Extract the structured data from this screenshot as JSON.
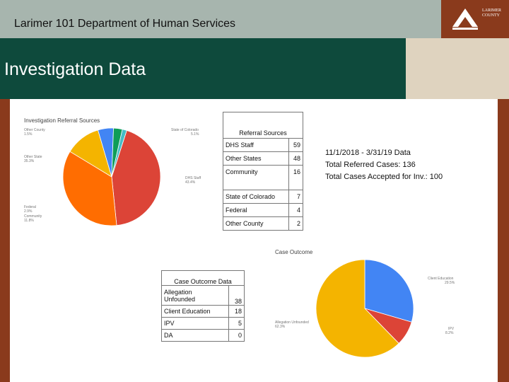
{
  "header": {
    "title": "Larimer 101 Department of Human Services"
  },
  "logo": {
    "line1": "LARIMER",
    "line2": "COUNTY"
  },
  "section_title": "Investigation Data",
  "referral_chart": {
    "title": "Investigation Referral Sources",
    "labels": [
      {
        "name": "Other County",
        "pct": "1.5%"
      },
      {
        "name": "State of Colorado",
        "pct": "5.1%"
      },
      {
        "name": "Other State",
        "pct": "35.3%"
      },
      {
        "name": "DHS Staff",
        "pct": "43.4%"
      },
      {
        "name": "Federal",
        "pct": "2.9%"
      },
      {
        "name": "Community",
        "pct": "11.8%"
      }
    ]
  },
  "referral_table": {
    "header": "Referral Sources",
    "rows": [
      {
        "label": "DHS Staff",
        "value": "59"
      },
      {
        "label": "Other States",
        "value": "48"
      },
      {
        "label": "Community",
        "value": "16"
      },
      {
        "label": "State of Colorado",
        "value": "7"
      },
      {
        "label": "Federal",
        "value": "4"
      },
      {
        "label": "Other County",
        "value": "2"
      }
    ]
  },
  "summary": {
    "line1": "11/1/2018 - 3/31/19 Data",
    "line2": "Total Referred Cases: 136",
    "line3": "Total Cases Accepted for Inv.: 100"
  },
  "outcome_table": {
    "header": "Case Outcome Data",
    "rows": [
      {
        "label1": "Allegation",
        "label2": "Unfounded",
        "value": "38"
      },
      {
        "label1": "Client Education",
        "label2": "",
        "value": "18"
      },
      {
        "label1": "IPV",
        "label2": "",
        "value": "5"
      },
      {
        "label1": "DA",
        "label2": "",
        "value": "0"
      }
    ]
  },
  "outcome_chart": {
    "title": "Case Outcome",
    "labels": [
      {
        "name": "Client Education",
        "pct": "29.5%"
      },
      {
        "name": "IPV",
        "pct": "8.2%"
      },
      {
        "name": "Allegation Unfounded",
        "pct": "62.3%"
      }
    ]
  },
  "chart_data": [
    {
      "type": "pie",
      "title": "Investigation Referral Sources",
      "categories": [
        "DHS Staff",
        "Other State",
        "Community",
        "State of Colorado",
        "Federal",
        "Other County"
      ],
      "values": [
        59,
        48,
        16,
        7,
        4,
        2
      ],
      "colors": [
        "#dc4437",
        "#ff6d01",
        "#f4b400",
        "#4285f4",
        "#0f9d58",
        "#46bdc6"
      ]
    },
    {
      "type": "pie",
      "title": "Case Outcome",
      "categories": [
        "Client Education",
        "IPV",
        "Allegation Unfounded"
      ],
      "values": [
        18,
        5,
        38
      ],
      "colors": [
        "#4285f4",
        "#dc4437",
        "#f4b400"
      ]
    }
  ]
}
